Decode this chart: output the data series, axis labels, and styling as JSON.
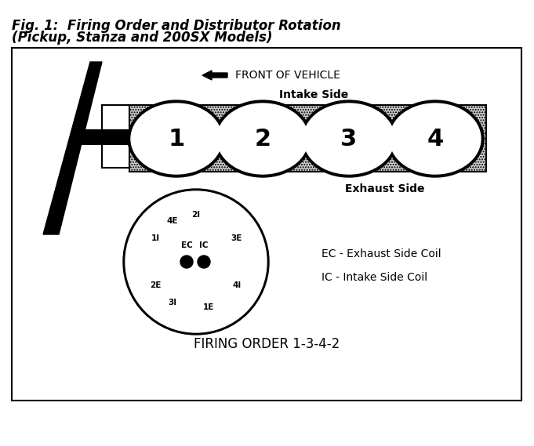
{
  "title_line1": "Fig. 1:  Firing Order and Distributor Rotation",
  "title_line2": "(Pickup, Stanza and 200SX Models)",
  "front_label": "FRONT OF VEHICLE",
  "intake_label": "Intake Side",
  "exhaust_label": "Exhaust Side",
  "cylinder_numbers": [
    "1",
    "2",
    "3",
    "4"
  ],
  "legend_ec": "EC - Exhaust Side Coil",
  "legend_ic": "IC - Intake Side Coil",
  "firing_order_text": "FIRING ORDER 1-3-4-2",
  "bg_color": "#ffffff",
  "fig_width": 6.81,
  "fig_height": 5.69,
  "dpi": 100
}
